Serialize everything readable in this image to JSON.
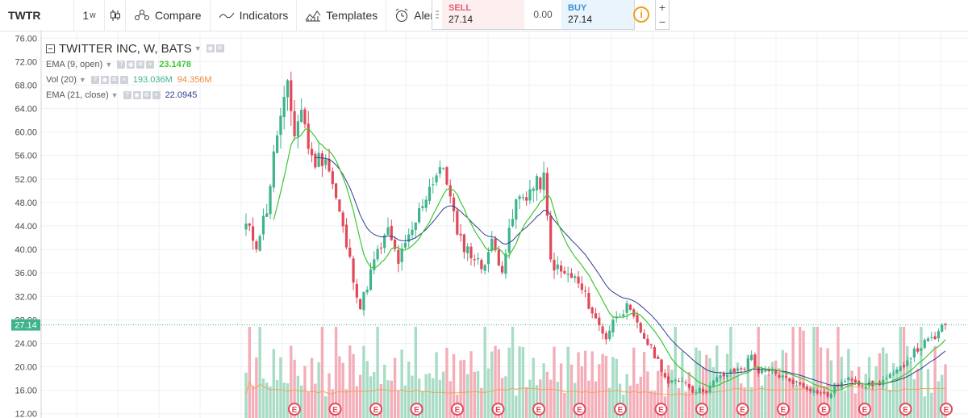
{
  "toolbar": {
    "symbol": "TWTR",
    "interval": "1",
    "interval_sup": "W",
    "compare": "Compare",
    "indicators": "Indicators",
    "templates": "Templates",
    "alert": "Alert",
    "icons": [
      "candles-icon",
      "compare-icon",
      "indicators-icon",
      "templates-icon",
      "alert-icon"
    ]
  },
  "trade": {
    "sell_label": "SELL",
    "sell_price": "27.14",
    "spread": "0.00",
    "buy_label": "BUY",
    "buy_price": "27.14",
    "info": "i",
    "zoom_in": "+",
    "zoom_out": "−"
  },
  "legend": {
    "title": "TWITTER INC, W, BATS",
    "ema9_label": "EMA (9, open)",
    "ema9_value": "23.1478",
    "vol_label": "Vol (20)",
    "vol_value": "193.036M",
    "vol_ma_value": "94.356M",
    "ema21_label": "EMA (21, close)",
    "ema21_value": "22.0945"
  },
  "colors": {
    "up": "#3fb38d",
    "down": "#e0495a",
    "ema9": "#3dc832",
    "ema21": "#2c3f8f",
    "vol_ma": "#f0a35a",
    "vol_up": "#a9dcc5",
    "vol_down": "#f4aeb8",
    "last_price_line": "#3fb38d"
  },
  "chart_data": {
    "type": "candlestick",
    "title": "TWITTER INC, W, BATS",
    "y_ticks": [
      "12.00",
      "16.00",
      "20.00",
      "24.00",
      "28.00",
      "32.00",
      "36.00",
      "40.00",
      "44.00",
      "48.00",
      "52.00",
      "56.00",
      "60.00",
      "64.00",
      "68.00",
      "72.00",
      "76.00"
    ],
    "ylim": [
      11,
      77
    ],
    "last_price": "27.14",
    "earnings_marker": "E",
    "earnings_count": 17,
    "close_anchors": [
      [
        0,
        44
      ],
      [
        3,
        41
      ],
      [
        6,
        47
      ],
      [
        9,
        60
      ],
      [
        12,
        67
      ],
      [
        14,
        60
      ],
      [
        16,
        64
      ],
      [
        19,
        55
      ],
      [
        23,
        56
      ],
      [
        27,
        46
      ],
      [
        30,
        38
      ],
      [
        33,
        30
      ],
      [
        37,
        38
      ],
      [
        41,
        43
      ],
      [
        44,
        38
      ],
      [
        48,
        43
      ],
      [
        51,
        48
      ],
      [
        54,
        52
      ],
      [
        56,
        54
      ],
      [
        59,
        50
      ],
      [
        61,
        42
      ],
      [
        64,
        40
      ],
      [
        68,
        37
      ],
      [
        71,
        41
      ],
      [
        74,
        37
      ],
      [
        78,
        48
      ],
      [
        82,
        50
      ],
      [
        86,
        52
      ],
      [
        88,
        38
      ],
      [
        91,
        36
      ],
      [
        95,
        35
      ],
      [
        98,
        32
      ],
      [
        101,
        28
      ],
      [
        104,
        25
      ],
      [
        107,
        29
      ],
      [
        110,
        30
      ],
      [
        113,
        27
      ],
      [
        116,
        24
      ],
      [
        119,
        21
      ],
      [
        122,
        17
      ],
      [
        126,
        18
      ],
      [
        129,
        16
      ],
      [
        133,
        16
      ],
      [
        136,
        18
      ],
      [
        140,
        19
      ],
      [
        144,
        20
      ],
      [
        146,
        22
      ],
      [
        148,
        19
      ],
      [
        152,
        19
      ],
      [
        156,
        18
      ],
      [
        160,
        17
      ],
      [
        164,
        16
      ],
      [
        168,
        15
      ],
      [
        171,
        17
      ],
      [
        175,
        18
      ],
      [
        178,
        17
      ],
      [
        182,
        17
      ],
      [
        185,
        18
      ],
      [
        188,
        19
      ],
      [
        192,
        22
      ],
      [
        196,
        24
      ],
      [
        199,
        25
      ],
      [
        202,
        27.14
      ]
    ]
  }
}
